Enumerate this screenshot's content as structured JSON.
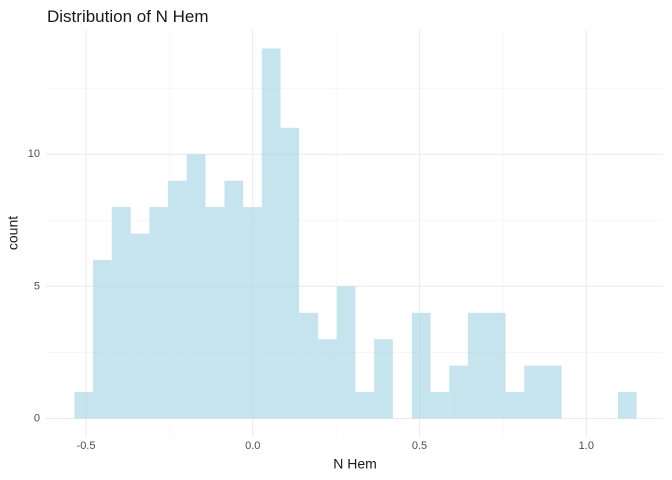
{
  "chart_data": {
    "type": "histogram",
    "title": "Distribution of N Hem",
    "x_label": "N Hem",
    "y_label": "count",
    "bins": [
      -0.535,
      -0.479,
      -0.423,
      -0.366,
      -0.31,
      -0.254,
      -0.198,
      -0.142,
      -0.085,
      -0.029,
      0.027,
      0.083,
      0.139,
      0.196,
      0.252,
      0.308,
      0.364,
      0.42,
      0.477,
      0.533,
      0.589,
      0.645,
      0.701,
      0.758,
      0.814,
      0.87,
      0.926,
      0.982,
      1.039,
      1.095,
      1.151
    ],
    "values": [
      1,
      6,
      8,
      7,
      8,
      9,
      10,
      8,
      9,
      8,
      14,
      11,
      4,
      3,
      5,
      1,
      3,
      0,
      4,
      1,
      2,
      4,
      4,
      1,
      2,
      2,
      0,
      0,
      0,
      1
    ],
    "color": "#add8e6",
    "opacity": 0.7,
    "xlim": [
      -0.62,
      1.23
    ],
    "ylim": [
      -0.7,
      14.7
    ],
    "xticks": [
      -0.5,
      {
        "value": 0,
        "label": "0.0"
      },
      0.5,
      {
        "value": 1,
        "label": "1.0"
      }
    ],
    "yticks": [
      0,
      5,
      10
    ],
    "xminor": [
      -0.25,
      0.25,
      0.75
    ],
    "yminor": [
      2.5,
      7.5,
      12.5
    ],
    "grid": true
  }
}
